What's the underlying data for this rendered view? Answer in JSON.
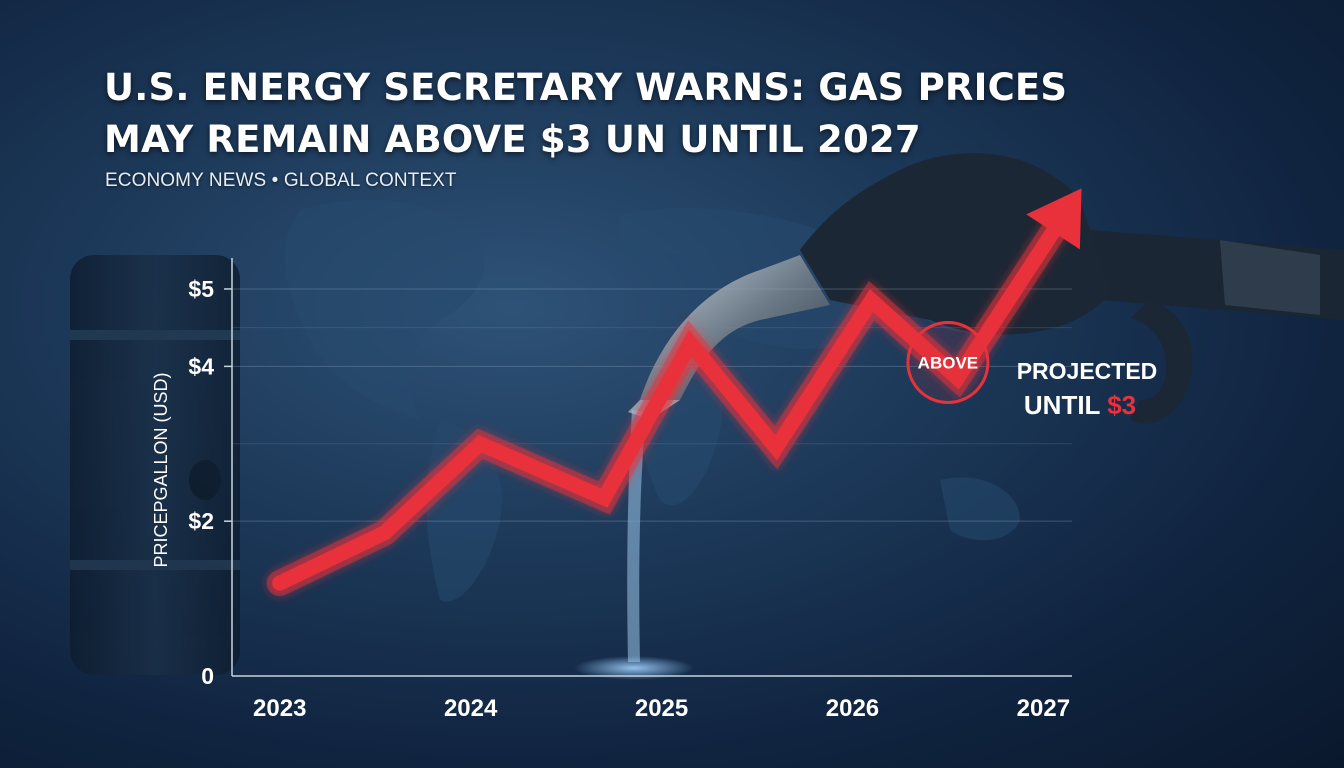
{
  "header": {
    "title_line1": "U.S. ENERGY SECRETARY WARNS: GAS PRICES",
    "title_line2": "MAY REMAIN ABOVE $3 UN UNTIL 2027",
    "subtitle": "ECONOMY NEWS • GLOBAL CONTEXT"
  },
  "colors": {
    "background": "#14304f",
    "accent_red": "#e8313b",
    "text": "#ffffff"
  },
  "chart_data": {
    "type": "line",
    "title": "",
    "ylabel": "PRICEPGALLON (USD)",
    "xlabel": "",
    "x_ticks": [
      "2023",
      "2024",
      "2025",
      "2026",
      "2027"
    ],
    "x_tick_values": [
      2023,
      2024,
      2025,
      2026,
      2027
    ],
    "y_ticks": [
      {
        "value": 0,
        "label": "0"
      },
      {
        "value": 2,
        "label": "$2"
      },
      {
        "value": 4,
        "label": "$4"
      },
      {
        "value": 5,
        "label": "$5"
      }
    ],
    "xlim": [
      2022.75,
      2027.15
    ],
    "ylim": [
      0,
      5.4
    ],
    "grid": true,
    "series": [
      {
        "color": "#e8313b",
        "arrow_end": true,
        "points": [
          {
            "x": 2023.0,
            "y": 1.2
          },
          {
            "x": 2023.55,
            "y": 1.85
          },
          {
            "x": 2024.05,
            "y": 3.0
          },
          {
            "x": 2024.7,
            "y": 2.3
          },
          {
            "x": 2025.15,
            "y": 4.3
          },
          {
            "x": 2025.6,
            "y": 2.95
          },
          {
            "x": 2026.1,
            "y": 4.85
          },
          {
            "x": 2026.55,
            "y": 3.85
          },
          {
            "x": 2027.2,
            "y": 6.3
          }
        ]
      }
    ],
    "annotations": {
      "badge": {
        "text": "ABOVE",
        "x": 2026.5,
        "y": 4.05
      },
      "projected_line1": "PROJECTED",
      "projected_line2_a": "UNTIL ",
      "projected_line2_b": "$3"
    }
  }
}
